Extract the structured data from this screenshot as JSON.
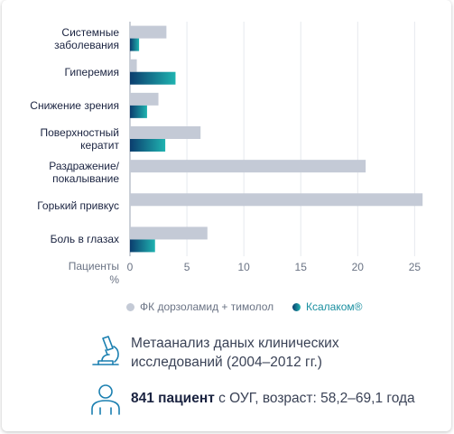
{
  "chart_data": {
    "type": "bar",
    "orientation": "horizontal",
    "categories": [
      "Системные\nзаболевания",
      "Гиперемия",
      "Снижение зрения",
      "Поверхностный\nкератит",
      "Раздражение/\nпокалывание",
      "Горький привкус",
      "Боль в глазах"
    ],
    "series": [
      {
        "name": "ФК дорзоламид + тимолол",
        "values": [
          3.2,
          0.6,
          2.5,
          6.2,
          20.7,
          25.7,
          6.8
        ],
        "color": "#c4cad6"
      },
      {
        "name": "Ксалаком®",
        "values": [
          0.8,
          4.0,
          1.5,
          3.1,
          0,
          0,
          2.2
        ],
        "color_start": "#0b3d6e",
        "color_end": "#1fb3b0"
      }
    ],
    "xlabel": "Пациенты\n%",
    "ticks": [
      "0",
      "5",
      "10",
      "15",
      "20",
      "25"
    ],
    "xlim": [
      0,
      26
    ],
    "grid": true,
    "legend_position": "bottom"
  },
  "legend": {
    "item1": "ФК дорзоламид + тимолол",
    "item2": "Ксалаком®"
  },
  "info": {
    "study_text": "Метаанализ даных клинических исследований (2004–2012 гг.)",
    "patients_bold": "841 пациент",
    "patients_rest": " с ОУГ, возраст: 58,2–69,1 года",
    "microscope_icon": "microscope-icon",
    "person_icon": "person-icon"
  }
}
